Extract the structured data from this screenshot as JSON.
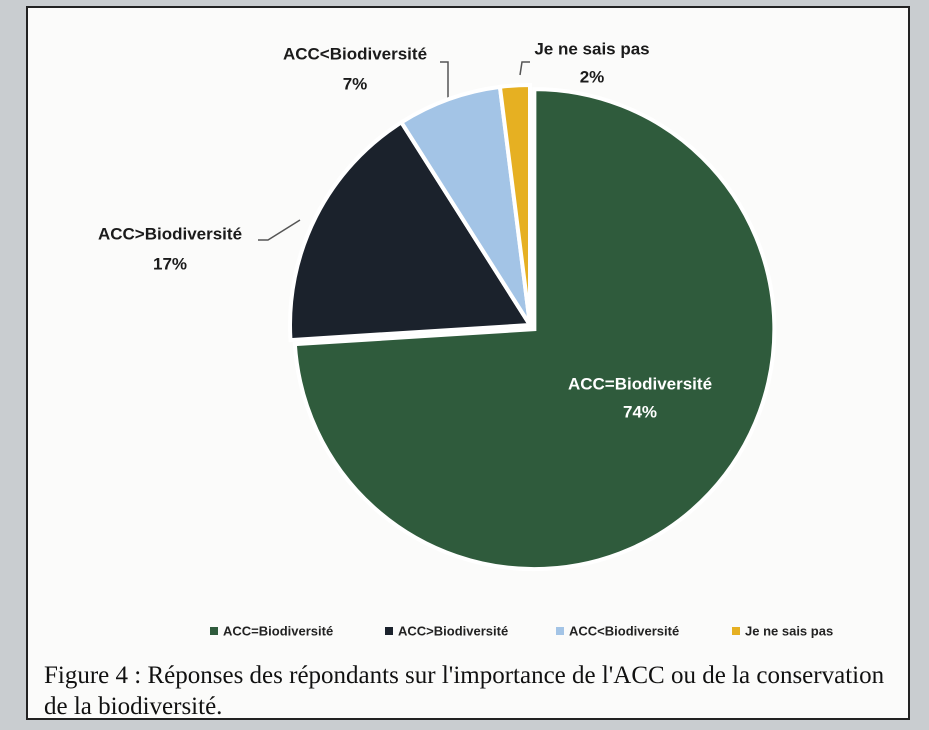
{
  "chart_data": {
    "type": "pie",
    "categories": [
      "ACC=Biodiversité",
      "ACC>Biodiversité",
      "ACC<Biodiversité",
      "Je ne sais pas"
    ],
    "values": [
      74,
      17,
      7,
      2
    ],
    "value_labels": [
      "74%",
      "17%",
      "7%",
      "2%"
    ],
    "colors": [
      "#2f5b3c",
      "#1b222c",
      "#a3c4e6",
      "#e6b022"
    ],
    "legend": "bottom",
    "caption": "Figure 4 : Réponses des répondants sur l'importance de l'ACC ou de la conservation de la biodiversité."
  }
}
